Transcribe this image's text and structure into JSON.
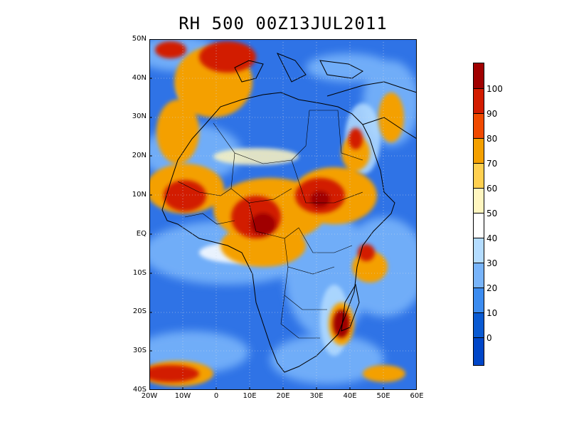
{
  "title": "RH 500 00Z13JUL2011",
  "lat_labels": [
    "50N",
    "40N",
    "30N",
    "20N",
    "10N",
    "EQ",
    "10S",
    "20S",
    "30S",
    "40S"
  ],
  "lon_labels": [
    "20W",
    "10W",
    "0",
    "10E",
    "20E",
    "30E",
    "40E",
    "50E",
    "60E"
  ],
  "colorbar": {
    "labels": [
      "100",
      "90",
      "80",
      "70",
      "60",
      "50",
      "40",
      "30",
      "20",
      "10",
      "0"
    ],
    "colors": [
      "#a00000",
      "#d21c00",
      "#f04a00",
      "#f4a000",
      "#ffd050",
      "#fff6c0",
      "#ffffff",
      "#b4dcff",
      "#78b4fa",
      "#3c8cf0",
      "#0a5ad2",
      "#0046c8"
    ]
  },
  "map": {
    "field": "RH",
    "level": "500",
    "lon_range": [
      -20,
      60
    ],
    "lat_range": [
      -40,
      50
    ],
    "base_color": "#2f73e6"
  }
}
